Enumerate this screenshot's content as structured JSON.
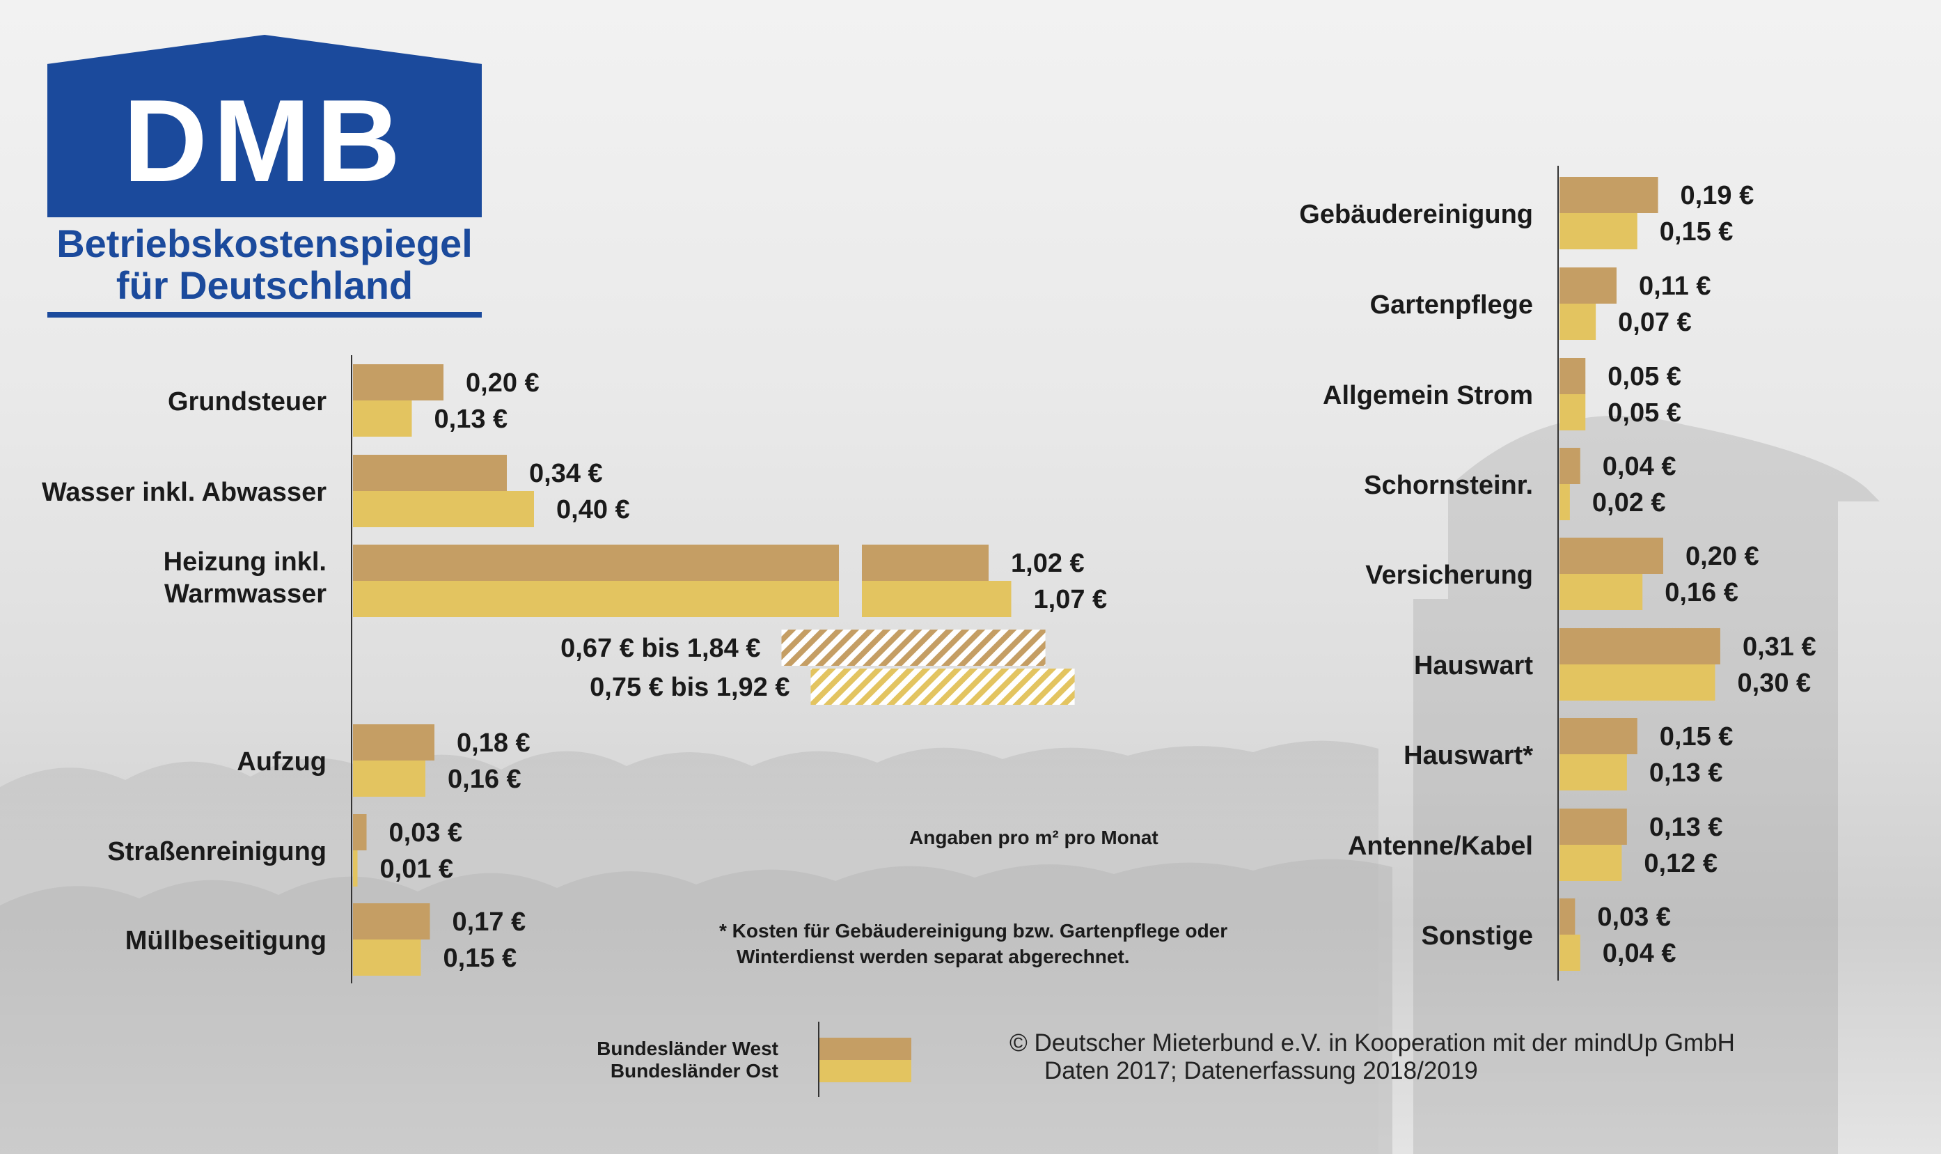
{
  "logo": {
    "brand": "DMB",
    "subtitle_line1": "Betriebskostenspiegel",
    "subtitle_line2": "für Deutschland",
    "colors": {
      "blue": "#1b4a9c",
      "white": "#ffffff"
    }
  },
  "notes": {
    "unit": "Angaben pro m² pro Monat",
    "footnote_line1": "* Kosten für Gebäudereinigung bzw. Gartenpflege oder",
    "footnote_line2": "Winterdienst werden separat abgerechnet.",
    "copyright_line1": "©  Deutscher Mieterbund e.V. in Kooperation mit der mindUp GmbH",
    "copyright_line2": "Daten 2017; Datenerfassung 2018/2019"
  },
  "legend": {
    "west": "Bundesländer West",
    "east": "Bundesländer Ost"
  },
  "colors": {
    "west": "#c59e64",
    "east": "#e3c460",
    "text": "#1a1a1a"
  },
  "chart_data": [
    {
      "type": "bar",
      "orientation": "horizontal",
      "unit": "€ pro m² pro Monat",
      "categories": [
        "Grundsteuer",
        "Wasser inkl. Abwasser",
        "Heizung inkl. Warmwasser",
        "Aufzug",
        "Straßenreinigung",
        "Müllbeseitigung"
      ],
      "series": [
        {
          "name": "Bundesländer West",
          "values": [
            0.2,
            0.34,
            1.02,
            0.18,
            0.03,
            0.17
          ],
          "labels": [
            "0,20 €",
            "0,34 €",
            "1,02 €",
            "0,18 €",
            "0,03 €",
            "0,17 €"
          ]
        },
        {
          "name": "Bundesländer Ost",
          "values": [
            0.13,
            0.4,
            1.07,
            0.16,
            0.01,
            0.15
          ],
          "labels": [
            "0,13 €",
            "0,40 €",
            "1,07 €",
            "0,16 €",
            "0,01 €",
            "0,15 €"
          ]
        }
      ],
      "axis_break": {
        "category": "Heizung inkl. Warmwasser"
      },
      "ranges": [
        {
          "category": "Heizung inkl. Warmwasser",
          "series": "Bundesländer West",
          "min": 0.67,
          "max": 1.84,
          "label": "0,67 € bis 1,84 €"
        },
        {
          "category": "Heizung inkl. Warmwasser",
          "series": "Bundesländer Ost",
          "min": 0.75,
          "max": 1.92,
          "label": "0,75 € bis 1,92 €"
        }
      ],
      "grid": false,
      "legend_position": "bottom"
    },
    {
      "type": "bar",
      "orientation": "horizontal",
      "unit": "€ pro m² pro Monat",
      "categories": [
        "Gebäudereinigung",
        "Gartenpflege",
        "Allgemein Strom",
        "Schornsteinr.",
        "Versicherung",
        "Hauswart",
        "Hauswart*",
        "Antenne/Kabel",
        "Sonstige"
      ],
      "series": [
        {
          "name": "Bundesländer West",
          "values": [
            0.19,
            0.11,
            0.05,
            0.04,
            0.2,
            0.31,
            0.15,
            0.13,
            0.03
          ],
          "labels": [
            "0,19 €",
            "0,11 €",
            "0,05 €",
            "0,04 €",
            "0,20 €",
            "0,31 €",
            "0,15 €",
            "0,13 €",
            "0,03 €"
          ]
        },
        {
          "name": "Bundesländer Ost",
          "values": [
            0.15,
            0.07,
            0.05,
            0.02,
            0.16,
            0.3,
            0.13,
            0.12,
            0.04
          ],
          "labels": [
            "0,15 €",
            "0,07 €",
            "0,05 €",
            "0,02 €",
            "0,16 €",
            "0,30 €",
            "0,13 €",
            "0,12 €",
            "0,04 €"
          ]
        }
      ],
      "grid": false,
      "legend_position": "bottom"
    }
  ]
}
